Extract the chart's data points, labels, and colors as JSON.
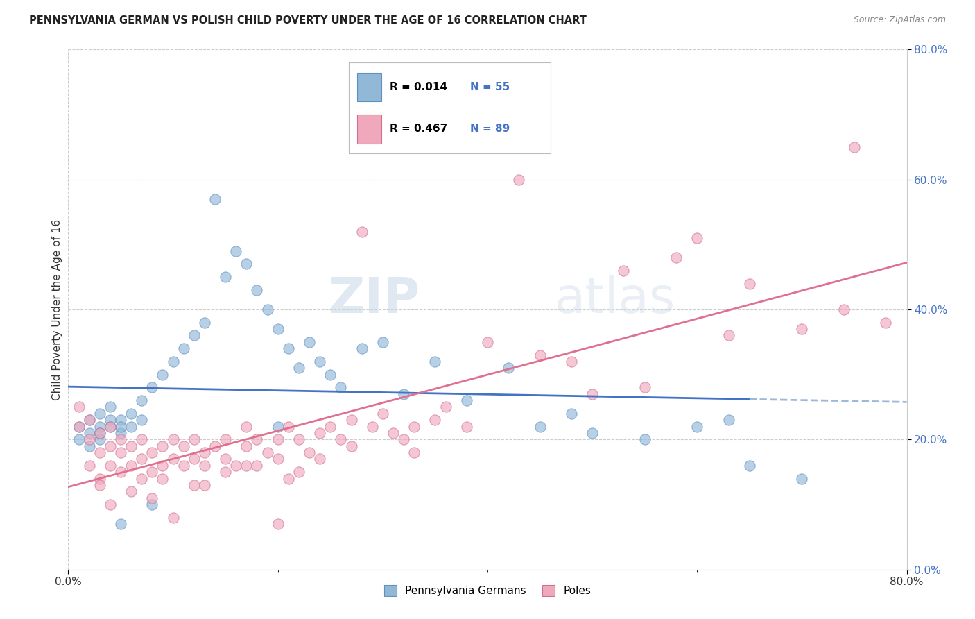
{
  "title": "PENNSYLVANIA GERMAN VS POLISH CHILD POVERTY UNDER THE AGE OF 16 CORRELATION CHART",
  "source": "Source: ZipAtlas.com",
  "ylabel": "Child Poverty Under the Age of 16",
  "xlim": [
    0.0,
    0.8
  ],
  "ylim": [
    0.0,
    0.8
  ],
  "watermark_zip": "ZIP",
  "watermark_atlas": "atlas",
  "legend_blue_R": "R = 0.014",
  "legend_blue_N": "N = 55",
  "legend_pink_R": "R = 0.467",
  "legend_pink_N": "N = 89",
  "legend_label_blue": "Pennsylvania Germans",
  "legend_label_pink": "Poles",
  "blue_line_color": "#4472c4",
  "pink_line_color": "#e07090",
  "blue_line_dash_color": "#a0b8d8",
  "background_color": "#ffffff",
  "grid_color": "#cccccc",
  "scatter_blue_color": "#92b8d8",
  "scatter_blue_edge": "#6090c0",
  "scatter_pink_color": "#f0a8bc",
  "scatter_pink_edge": "#d07090",
  "title_color": "#222222",
  "source_color": "#888888",
  "tick_color": "#4472c4",
  "ylabel_color": "#333333",
  "pg_x": [
    0.01,
    0.01,
    0.02,
    0.02,
    0.02,
    0.03,
    0.03,
    0.03,
    0.03,
    0.04,
    0.04,
    0.04,
    0.05,
    0.05,
    0.05,
    0.06,
    0.06,
    0.07,
    0.07,
    0.08,
    0.09,
    0.1,
    0.11,
    0.12,
    0.13,
    0.14,
    0.15,
    0.16,
    0.17,
    0.18,
    0.19,
    0.2,
    0.21,
    0.22,
    0.23,
    0.24,
    0.25,
    0.26,
    0.28,
    0.3,
    0.32,
    0.35,
    0.38,
    0.42,
    0.45,
    0.48,
    0.5,
    0.55,
    0.6,
    0.63,
    0.65,
    0.7,
    0.2,
    0.05,
    0.08
  ],
  "pg_y": [
    0.22,
    0.2,
    0.23,
    0.19,
    0.21,
    0.22,
    0.2,
    0.24,
    0.21,
    0.23,
    0.22,
    0.25,
    0.21,
    0.23,
    0.22,
    0.24,
    0.22,
    0.26,
    0.23,
    0.28,
    0.3,
    0.32,
    0.34,
    0.36,
    0.38,
    0.57,
    0.45,
    0.49,
    0.47,
    0.43,
    0.4,
    0.37,
    0.34,
    0.31,
    0.35,
    0.32,
    0.3,
    0.28,
    0.34,
    0.35,
    0.27,
    0.32,
    0.26,
    0.31,
    0.22,
    0.24,
    0.21,
    0.2,
    0.22,
    0.23,
    0.16,
    0.14,
    0.22,
    0.07,
    0.1
  ],
  "po_x": [
    0.01,
    0.01,
    0.02,
    0.02,
    0.02,
    0.03,
    0.03,
    0.03,
    0.04,
    0.04,
    0.04,
    0.05,
    0.05,
    0.05,
    0.06,
    0.06,
    0.07,
    0.07,
    0.07,
    0.08,
    0.08,
    0.09,
    0.09,
    0.1,
    0.1,
    0.11,
    0.11,
    0.12,
    0.12,
    0.13,
    0.13,
    0.14,
    0.15,
    0.15,
    0.16,
    0.17,
    0.17,
    0.18,
    0.19,
    0.2,
    0.2,
    0.21,
    0.22,
    0.23,
    0.24,
    0.25,
    0.26,
    0.27,
    0.28,
    0.29,
    0.3,
    0.31,
    0.32,
    0.33,
    0.35,
    0.36,
    0.38,
    0.4,
    0.43,
    0.45,
    0.48,
    0.5,
    0.53,
    0.55,
    0.58,
    0.6,
    0.63,
    0.65,
    0.7,
    0.74,
    0.75,
    0.78,
    0.03,
    0.06,
    0.09,
    0.12,
    0.15,
    0.18,
    0.21,
    0.24,
    0.04,
    0.08,
    0.13,
    0.17,
    0.22,
    0.27,
    0.33,
    0.1,
    0.2
  ],
  "po_y": [
    0.25,
    0.22,
    0.2,
    0.16,
    0.23,
    0.18,
    0.14,
    0.21,
    0.16,
    0.19,
    0.22,
    0.15,
    0.18,
    0.2,
    0.16,
    0.19,
    0.14,
    0.17,
    0.2,
    0.15,
    0.18,
    0.16,
    0.19,
    0.17,
    0.2,
    0.16,
    0.19,
    0.17,
    0.2,
    0.18,
    0.16,
    0.19,
    0.17,
    0.2,
    0.16,
    0.19,
    0.22,
    0.2,
    0.18,
    0.17,
    0.2,
    0.22,
    0.2,
    0.18,
    0.21,
    0.22,
    0.2,
    0.23,
    0.52,
    0.22,
    0.24,
    0.21,
    0.2,
    0.22,
    0.23,
    0.25,
    0.22,
    0.35,
    0.6,
    0.33,
    0.32,
    0.27,
    0.46,
    0.28,
    0.48,
    0.51,
    0.36,
    0.44,
    0.37,
    0.4,
    0.65,
    0.38,
    0.13,
    0.12,
    0.14,
    0.13,
    0.15,
    0.16,
    0.14,
    0.17,
    0.1,
    0.11,
    0.13,
    0.16,
    0.15,
    0.19,
    0.18,
    0.08,
    0.07
  ]
}
